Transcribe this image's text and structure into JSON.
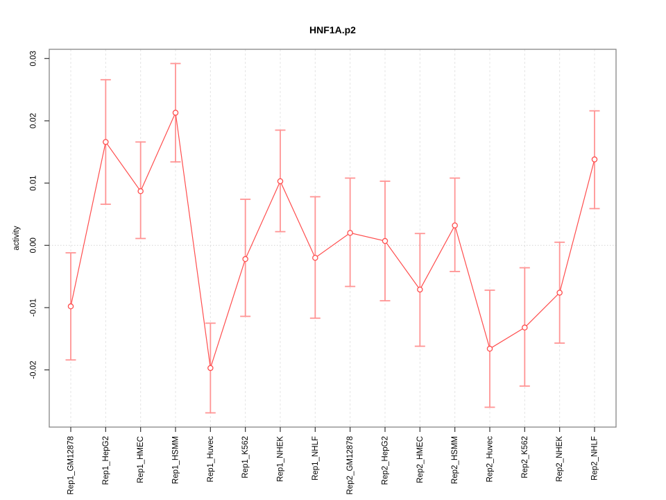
{
  "figure": {
    "background": "#ffffff"
  },
  "chart_data": {
    "type": "line",
    "title": "HNF1A.p2",
    "xlabel": "",
    "ylabel": "activity",
    "categories": [
      "Rep1_GM12878",
      "Rep1_HepG2",
      "Rep1_HMEC",
      "Rep1_HSMM",
      "Rep1_Huvec",
      "Rep1_K562",
      "Rep1_NHEK",
      "Rep1_NHLF",
      "Rep2_GM12878",
      "Rep2_HepG2",
      "Rep2_HMEC",
      "Rep2_HSMM",
      "Rep2_Huvec",
      "Rep2_K562",
      "Rep2_NHEK",
      "Rep2_NHLF"
    ],
    "series": [
      {
        "name": "activity",
        "values": [
          -0.0098,
          0.0166,
          0.0087,
          0.0213,
          -0.0197,
          -0.0022,
          0.0103,
          -0.002,
          0.002,
          0.0007,
          -0.0071,
          0.0032,
          -0.0166,
          -0.0132,
          -0.0076,
          0.0138
        ],
        "upper": [
          -0.0012,
          0.0266,
          0.0166,
          0.0292,
          -0.0125,
          0.0074,
          0.0185,
          0.0078,
          0.0108,
          0.0103,
          0.0019,
          0.0108,
          -0.0072,
          -0.0036,
          0.0005,
          0.0216
        ],
        "lower": [
          -0.0184,
          0.0066,
          0.0011,
          0.0134,
          -0.0269,
          -0.0114,
          0.0022,
          -0.0117,
          -0.0066,
          -0.0089,
          -0.0162,
          -0.0042,
          -0.026,
          -0.0226,
          -0.0157,
          0.0059
        ]
      }
    ],
    "yticks": [
      "0.03",
      "0.02",
      "0.01",
      "0.00",
      "-0.01",
      "-0.02"
    ],
    "ylim": [
      -0.0292,
      0.0315
    ],
    "grid": {
      "vertical_dashed_gridlines": true,
      "horizontal_zero_line_dotted": true
    },
    "legend": "none",
    "colors": {
      "line": "#ff4d4d",
      "point_stroke": "#ff4d4d",
      "error_bar": "#ff9494",
      "gridline": "#e4e4e4",
      "zero_line": "#d4d4d4",
      "box": "#858585",
      "tick": "#333333",
      "text": "#000000"
    }
  }
}
